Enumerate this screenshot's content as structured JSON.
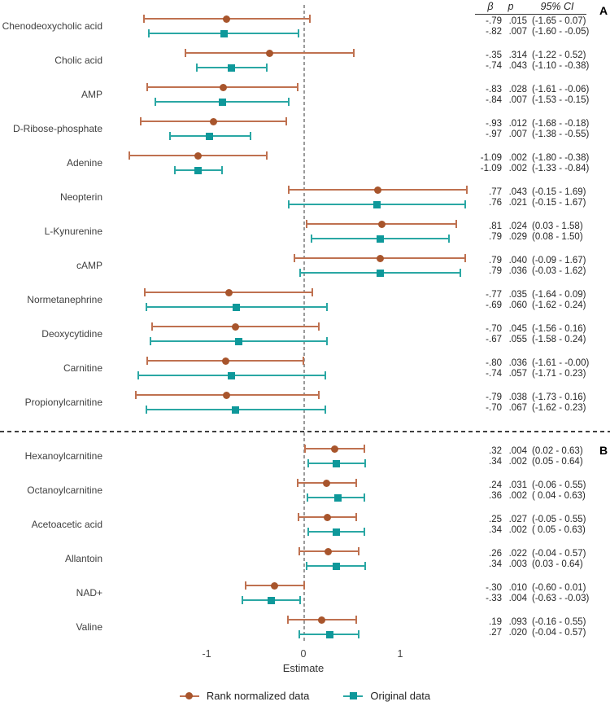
{
  "colors": {
    "rank_marker": "#a8552c",
    "rank_line": "#bf7150",
    "orig_marker": "#0e989a",
    "orig_line": "#2aa7a4",
    "zero_line": "#9b9b9b",
    "divider": "#3f3f3f",
    "label_text": "#404040",
    "stats_text": "#262626"
  },
  "stats_header": {
    "beta": "β",
    "p": "p",
    "ci": "95% CI"
  },
  "section_letters": {
    "a": "A",
    "b": "B"
  },
  "chart_data": {
    "type": "scatter",
    "subtype": "forest-plot",
    "xlabel": "Estimate",
    "xticks": [
      -1,
      0,
      1
    ],
    "xtick_labels": [
      "-1",
      "0",
      "1"
    ],
    "xlim": [
      -1.95,
      1.8
    ],
    "zero_reference_line": 0,
    "legend_position": "bottom",
    "grid": false,
    "series": [
      {
        "name": "Rank normalized data",
        "key": "rank",
        "marker": "circle"
      },
      {
        "name": "Original data",
        "key": "orig",
        "marker": "square"
      }
    ],
    "sections": [
      {
        "label": "A",
        "rows": [
          {
            "name": "Chenodeoxycholic acid",
            "rank": {
              "beta": -0.79,
              "ci_low": -1.65,
              "ci_high": 0.07,
              "beta_text": "-.79",
              "p_text": ".015",
              "ci_text": "(-1.65 - 0.07)"
            },
            "orig": {
              "beta": -0.82,
              "ci_low": -1.6,
              "ci_high": -0.05,
              "beta_text": "-.82",
              "p_text": ".007",
              "ci_text": "(-1.60 - -0.05)"
            }
          },
          {
            "name": "Cholic acid",
            "rank": {
              "beta": -0.35,
              "ci_low": -1.22,
              "ci_high": 0.52,
              "beta_text": "-.35",
              "p_text": ".314",
              "ci_text": "(-1.22 - 0.52)"
            },
            "orig": {
              "beta": -0.74,
              "ci_low": -1.1,
              "ci_high": -0.38,
              "beta_text": "-.74",
              "p_text": ".043",
              "ci_text": "(-1.10 - -0.38)"
            }
          },
          {
            "name": "AMP",
            "rank": {
              "beta": -0.83,
              "ci_low": -1.61,
              "ci_high": -0.06,
              "beta_text": "-.83",
              "p_text": ".028",
              "ci_text": "(-1.61 - -0.06)"
            },
            "orig": {
              "beta": -0.84,
              "ci_low": -1.53,
              "ci_high": -0.15,
              "beta_text": "-.84",
              "p_text": ".007",
              "ci_text": "(-1.53 - -0.15)"
            }
          },
          {
            "name": "D-Ribose-phosphate",
            "rank": {
              "beta": -0.93,
              "ci_low": -1.68,
              "ci_high": -0.18,
              "beta_text": "-.93",
              "p_text": ".012",
              "ci_text": "(-1.68 - -0.18)"
            },
            "orig": {
              "beta": -0.97,
              "ci_low": -1.38,
              "ci_high": -0.55,
              "beta_text": "-.97",
              "p_text": ".007",
              "ci_text": "(-1.38 - -0.55)"
            }
          },
          {
            "name": "Adenine",
            "rank": {
              "beta": -1.09,
              "ci_low": -1.8,
              "ci_high": -0.38,
              "beta_text": "-1.09",
              "p_text": ".002",
              "ci_text": "(-1.80 - -0.38)"
            },
            "orig": {
              "beta": -1.09,
              "ci_low": -1.33,
              "ci_high": -0.84,
              "beta_text": "-1.09",
              "p_text": ".002",
              "ci_text": "(-1.33 - -0.84)"
            }
          },
          {
            "name": "Neopterin",
            "rank": {
              "beta": 0.77,
              "ci_low": -0.15,
              "ci_high": 1.69,
              "beta_text": ".77",
              "p_text": ".043",
              "ci_text": "(-0.15 - 1.69)"
            },
            "orig": {
              "beta": 0.76,
              "ci_low": -0.15,
              "ci_high": 1.67,
              "beta_text": ".76",
              "p_text": ".021",
              "ci_text": "(-0.15 - 1.67)"
            }
          },
          {
            "name": "L-Kynurenine",
            "rank": {
              "beta": 0.81,
              "ci_low": 0.03,
              "ci_high": 1.58,
              "beta_text": ".81",
              "p_text": ".024",
              "ci_text": "(0.03 - 1.58)"
            },
            "orig": {
              "beta": 0.79,
              "ci_low": 0.08,
              "ci_high": 1.5,
              "beta_text": ".79",
              "p_text": ".029",
              "ci_text": "(0.08 - 1.50)"
            }
          },
          {
            "name": "cAMP",
            "rank": {
              "beta": 0.79,
              "ci_low": -0.09,
              "ci_high": 1.67,
              "beta_text": ".79",
              "p_text": ".040",
              "ci_text": "(-0.09 - 1.67)"
            },
            "orig": {
              "beta": 0.79,
              "ci_low": -0.03,
              "ci_high": 1.62,
              "beta_text": ".79",
              "p_text": ".036",
              "ci_text": "(-0.03 - 1.62)"
            }
          },
          {
            "name": "Normetanephrine",
            "rank": {
              "beta": -0.77,
              "ci_low": -1.64,
              "ci_high": 0.09,
              "beta_text": "-.77",
              "p_text": ".035",
              "ci_text": "(-1.64 - 0.09)"
            },
            "orig": {
              "beta": -0.69,
              "ci_low": -1.62,
              "ci_high": 0.24,
              "beta_text": "-.69",
              "p_text": ".060",
              "ci_text": "(-1.62 - 0.24)"
            }
          },
          {
            "name": "Deoxycytidine",
            "rank": {
              "beta": -0.7,
              "ci_low": -1.56,
              "ci_high": 0.16,
              "beta_text": "-.70",
              "p_text": ".045",
              "ci_text": "(-1.56 - 0.16)"
            },
            "orig": {
              "beta": -0.67,
              "ci_low": -1.58,
              "ci_high": 0.24,
              "beta_text": "-.67",
              "p_text": ".055",
              "ci_text": "(-1.58 - 0.24)"
            }
          },
          {
            "name": "Carnitine",
            "rank": {
              "beta": -0.8,
              "ci_low": -1.61,
              "ci_high": 0.0,
              "beta_text": "-.80",
              "p_text": ".036",
              "ci_text": "(-1.61 - -0.00)"
            },
            "orig": {
              "beta": -0.74,
              "ci_low": -1.71,
              "ci_high": 0.23,
              "beta_text": "-.74",
              "p_text": ".057",
              "ci_text": "(-1.71 - 0.23)"
            }
          },
          {
            "name": "Propionylcarnitine",
            "rank": {
              "beta": -0.79,
              "ci_low": -1.73,
              "ci_high": 0.16,
              "beta_text": "-.79",
              "p_text": ".038",
              "ci_text": "(-1.73 - 0.16)"
            },
            "orig": {
              "beta": -0.7,
              "ci_low": -1.62,
              "ci_high": 0.23,
              "beta_text": "-.70",
              "p_text": ".067",
              "ci_text": "(-1.62 - 0.23)"
            }
          }
        ]
      },
      {
        "label": "B",
        "rows": [
          {
            "name": "Hexanoylcarnitine",
            "rank": {
              "beta": 0.32,
              "ci_low": 0.02,
              "ci_high": 0.63,
              "beta_text": ".32",
              "p_text": ".004",
              "ci_text": "(0.02 - 0.63)"
            },
            "orig": {
              "beta": 0.34,
              "ci_low": 0.05,
              "ci_high": 0.64,
              "beta_text": ".34",
              "p_text": ".002",
              "ci_text": "(0.05 - 0.64)"
            }
          },
          {
            "name": "Octanoylcarnitine",
            "rank": {
              "beta": 0.24,
              "ci_low": -0.06,
              "ci_high": 0.55,
              "beta_text": ".24",
              "p_text": ".031",
              "ci_text": "(-0.06 - 0.55)"
            },
            "orig": {
              "beta": 0.36,
              "ci_low": 0.04,
              "ci_high": 0.63,
              "beta_text": ".36",
              "p_text": ".002",
              "ci_text": "( 0.04 - 0.63)"
            }
          },
          {
            "name": "Acetoacetic acid",
            "rank": {
              "beta": 0.25,
              "ci_low": -0.05,
              "ci_high": 0.55,
              "beta_text": ".25",
              "p_text": ".027",
              "ci_text": "(-0.05 - 0.55)"
            },
            "orig": {
              "beta": 0.34,
              "ci_low": 0.05,
              "ci_high": 0.63,
              "beta_text": ".34",
              "p_text": ".002",
              "ci_text": "( 0.05 - 0.63)"
            }
          },
          {
            "name": "Allantoin",
            "rank": {
              "beta": 0.26,
              "ci_low": -0.04,
              "ci_high": 0.57,
              "beta_text": ".26",
              "p_text": ".022",
              "ci_text": "(-0.04 - 0.57)"
            },
            "orig": {
              "beta": 0.34,
              "ci_low": 0.03,
              "ci_high": 0.64,
              "beta_text": ".34",
              "p_text": ".003",
              "ci_text": "(0.03 - 0.64)"
            }
          },
          {
            "name": "NAD+",
            "rank": {
              "beta": -0.3,
              "ci_low": -0.6,
              "ci_high": 0.01,
              "beta_text": "-.30",
              "p_text": ".010",
              "ci_text": "(-0.60 - 0.01)"
            },
            "orig": {
              "beta": -0.33,
              "ci_low": -0.63,
              "ci_high": -0.03,
              "beta_text": "-.33",
              "p_text": ".004",
              "ci_text": "(-0.63 - -0.03)"
            }
          },
          {
            "name": "Valine",
            "rank": {
              "beta": 0.19,
              "ci_low": -0.16,
              "ci_high": 0.55,
              "beta_text": ".19",
              "p_text": ".093",
              "ci_text": "(-0.16 - 0.55)"
            },
            "orig": {
              "beta": 0.27,
              "ci_low": -0.04,
              "ci_high": 0.57,
              "beta_text": ".27",
              "p_text": ".020",
              "ci_text": "(-0.04 - 0.57)"
            }
          }
        ]
      }
    ]
  }
}
